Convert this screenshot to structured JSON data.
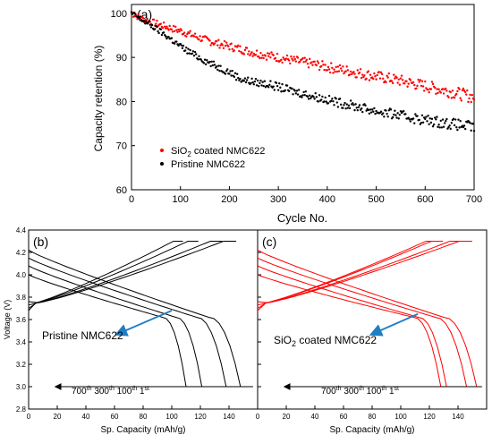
{
  "colors": {
    "coated": "#ff0000",
    "pristine": "#000000",
    "arrow": "#1f7fc4"
  },
  "chart_data": [
    {
      "panel_label": "(a)",
      "type": "scatter",
      "xlabel": "Cycle No.",
      "ylabel": "Capacity retention (%)",
      "xlim": [
        0,
        700
      ],
      "ylim": [
        60,
        102
      ],
      "xticks": [
        0,
        100,
        200,
        300,
        400,
        500,
        600,
        700
      ],
      "yticks": [
        60,
        70,
        80,
        90,
        100
      ],
      "legend_position": "bottom-left",
      "series": [
        {
          "name": "SiO2 coated NMC622",
          "legend_main": "SiO",
          "legend_sub": "2",
          "legend_rest": " coated NMC622",
          "color": "#ff0000",
          "x": [
            0,
            25,
            50,
            75,
            100,
            125,
            150,
            175,
            200,
            225,
            250,
            275,
            300,
            325,
            350,
            375,
            400,
            425,
            450,
            475,
            500,
            525,
            550,
            575,
            600,
            625,
            650,
            675,
            700
          ],
          "y": [
            100,
            98.6,
            97.7,
            96.8,
            96.0,
            95.0,
            94.0,
            93.2,
            92.5,
            91.8,
            91.1,
            90.5,
            90.0,
            89.4,
            88.9,
            88.4,
            87.8,
            87.3,
            86.8,
            86.2,
            85.7,
            85.2,
            84.7,
            84.1,
            83.5,
            82.9,
            82.3,
            81.6,
            81.0
          ]
        },
        {
          "name": "Pristine NMC622",
          "legend_main": "Pristine NMC622",
          "legend_sub": "",
          "legend_rest": "",
          "color": "#000000",
          "x": [
            0,
            25,
            50,
            75,
            100,
            125,
            150,
            175,
            200,
            225,
            250,
            275,
            300,
            325,
            350,
            375,
            400,
            425,
            450,
            475,
            500,
            525,
            550,
            575,
            600,
            625,
            650,
            675,
            700
          ],
          "y": [
            100,
            98.3,
            96.5,
            94.6,
            92.5,
            90.8,
            89.3,
            87.9,
            86.7,
            85.0,
            84.4,
            84.0,
            83.3,
            82.5,
            81.8,
            81.1,
            80.4,
            79.7,
            79.1,
            78.5,
            77.8,
            77.3,
            76.8,
            76.3,
            75.8,
            75.4,
            75.0,
            74.6,
            74.2
          ]
        }
      ]
    },
    {
      "panel_label": "(b)",
      "type": "line",
      "xlabel": "Sp. Capacity (mAh/g)",
      "ylabel": "Voltage (V)",
      "xlim": [
        0,
        160
      ],
      "ylim": [
        2.8,
        4.4
      ],
      "xticks": [
        0,
        20,
        40,
        60,
        80,
        100,
        120,
        140
      ],
      "yticks": [
        2.8,
        3.0,
        3.2,
        3.4,
        3.6,
        3.8,
        4.0,
        4.2,
        4.4
      ],
      "annotation": "Pristine NMC622",
      "cycles": [
        {
          "n": "700",
          "sup": "th"
        },
        {
          "n": "300",
          "sup": "th"
        },
        {
          "n": "100",
          "sup": "th"
        },
        {
          "n": "1",
          "sup": "st"
        }
      ],
      "color": "#000000",
      "capacities": [
        110,
        121,
        138,
        148
      ],
      "arrow_from": [
        100,
        3.68
      ],
      "arrow_to": [
        62,
        3.47
      ]
    },
    {
      "panel_label": "(c)",
      "type": "line",
      "xlabel": "Sp. Capacity (mAh/g)",
      "ylabel": "",
      "xlim": [
        0,
        160
      ],
      "ylim": [
        2.8,
        4.4
      ],
      "xticks": [
        0,
        20,
        40,
        60,
        80,
        100,
        120,
        140
      ],
      "yticks": [
        2.8,
        3.0,
        3.2,
        3.4,
        3.6,
        3.8,
        4.0,
        4.2,
        4.4
      ],
      "annotation_main": "SiO",
      "annotation_sub": "2",
      "annotation_rest": " coated NMC622",
      "cycles": [
        {
          "n": "700",
          "sup": "th"
        },
        {
          "n": "300",
          "sup": "th"
        },
        {
          "n": "100",
          "sup": "th"
        },
        {
          "n": "1",
          "sup": "st"
        }
      ],
      "color": "#ff0000",
      "capacities": [
        128,
        132,
        146,
        153
      ],
      "arrow_from": [
        112,
        3.65
      ],
      "arrow_to": [
        80,
        3.47
      ]
    }
  ]
}
